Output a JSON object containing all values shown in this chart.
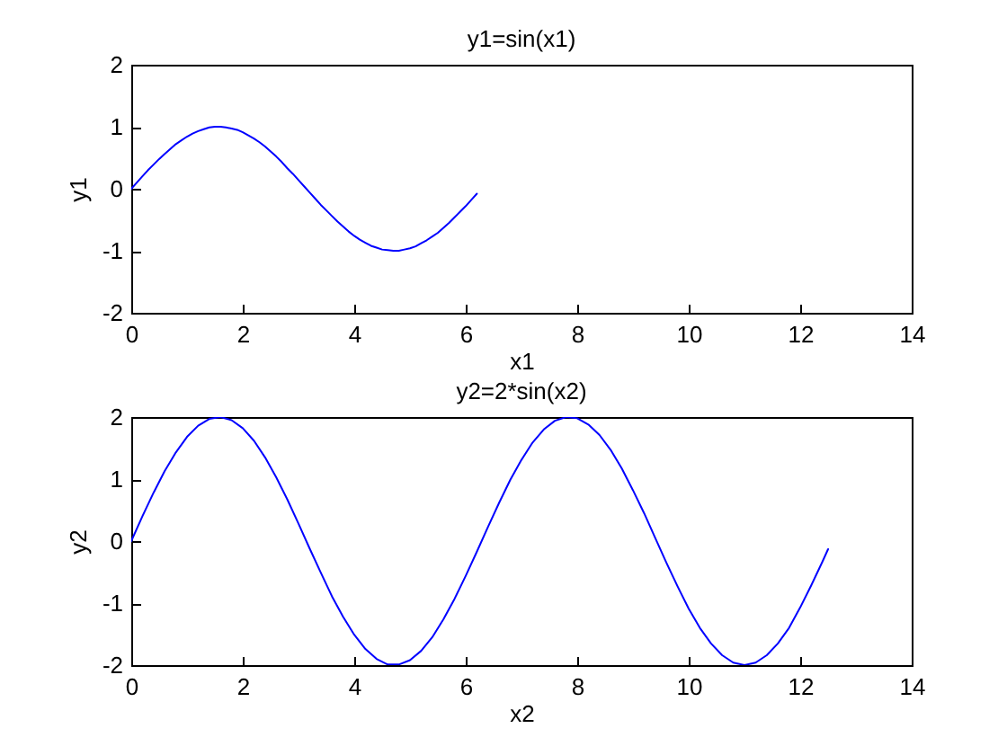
{
  "chart_data": [
    {
      "type": "line",
      "title": "y1=sin(x1)",
      "xlabel": "x1",
      "ylabel": "y1",
      "xlim": [
        0,
        14
      ],
      "xticks": [
        0,
        2,
        4,
        6,
        8,
        10,
        12,
        14
      ],
      "ylim": [
        -2,
        2
      ],
      "yticks": [
        -2,
        -1,
        0,
        1,
        2
      ],
      "series": [
        {
          "color": "#0000ff",
          "x": [
            0,
            0.1,
            0.2,
            0.3,
            0.4,
            0.5,
            0.6,
            0.7,
            0.8,
            0.9,
            1.0,
            1.1,
            1.2,
            1.3,
            1.4,
            1.5,
            1.6,
            1.7,
            1.8,
            1.9,
            2.0,
            2.1,
            2.2,
            2.3,
            2.4,
            2.5,
            2.6,
            2.7,
            2.8,
            2.9,
            3.0,
            3.1,
            3.2,
            3.3,
            3.4,
            3.5,
            3.6,
            3.7,
            3.8,
            3.9,
            4.0,
            4.1,
            4.2,
            4.3,
            4.4,
            4.5,
            4.6,
            4.7,
            4.8,
            4.9,
            5.0,
            5.1,
            5.2,
            5.3,
            5.4,
            5.5,
            5.6,
            5.7,
            5.8,
            5.9,
            6.0,
            6.1,
            6.2
          ],
          "values": [
            0,
            0.1,
            0.2,
            0.3,
            0.39,
            0.48,
            0.56,
            0.64,
            0.72,
            0.78,
            0.84,
            0.89,
            0.93,
            0.96,
            0.99,
            1.0,
            1.0,
            0.99,
            0.97,
            0.95,
            0.91,
            0.86,
            0.81,
            0.75,
            0.68,
            0.6,
            0.52,
            0.43,
            0.33,
            0.24,
            0.14,
            0.04,
            -0.06,
            -0.16,
            -0.26,
            -0.35,
            -0.44,
            -0.53,
            -0.61,
            -0.69,
            -0.76,
            -0.82,
            -0.87,
            -0.92,
            -0.95,
            -0.98,
            -0.99,
            -1.0,
            -1.0,
            -0.98,
            -0.96,
            -0.93,
            -0.88,
            -0.83,
            -0.77,
            -0.71,
            -0.63,
            -0.55,
            -0.46,
            -0.37,
            -0.28,
            -0.18,
            -0.08
          ]
        }
      ]
    },
    {
      "type": "line",
      "title": "y2=2*sin(x2)",
      "xlabel": "x2",
      "ylabel": "y2",
      "xlim": [
        0,
        14
      ],
      "xticks": [
        0,
        2,
        4,
        6,
        8,
        10,
        12,
        14
      ],
      "ylim": [
        -2,
        2
      ],
      "yticks": [
        -2,
        -1,
        0,
        1,
        2
      ],
      "series": [
        {
          "color": "#0000ff",
          "x": [
            0,
            0.2,
            0.4,
            0.6,
            0.8,
            1.0,
            1.2,
            1.4,
            1.6,
            1.8,
            2.0,
            2.2,
            2.4,
            2.6,
            2.8,
            3.0,
            3.2,
            3.4,
            3.6,
            3.8,
            4.0,
            4.2,
            4.4,
            4.6,
            4.8,
            5.0,
            5.2,
            5.4,
            5.6,
            5.8,
            6.0,
            6.2,
            6.4,
            6.6,
            6.8,
            7.0,
            7.2,
            7.4,
            7.6,
            7.8,
            8.0,
            8.2,
            8.4,
            8.6,
            8.8,
            9.0,
            9.2,
            9.4,
            9.6,
            9.8,
            10.0,
            10.2,
            10.4,
            10.6,
            10.8,
            11.0,
            11.2,
            11.4,
            11.6,
            11.8,
            12.0,
            12.2,
            12.4,
            12.5
          ],
          "values": [
            0,
            0.4,
            0.78,
            1.13,
            1.43,
            1.68,
            1.86,
            1.97,
            2.0,
            1.95,
            1.82,
            1.62,
            1.35,
            1.03,
            0.67,
            0.28,
            -0.12,
            -0.51,
            -0.89,
            -1.22,
            -1.51,
            -1.74,
            -1.9,
            -1.99,
            -1.99,
            -1.92,
            -1.77,
            -1.55,
            -1.26,
            -0.93,
            -0.56,
            -0.17,
            0.23,
            0.62,
            0.99,
            1.31,
            1.59,
            1.8,
            1.94,
            2.0,
            1.98,
            1.88,
            1.71,
            1.47,
            1.17,
            0.82,
            0.45,
            0.05,
            -0.35,
            -0.73,
            -1.09,
            -1.4,
            -1.65,
            -1.84,
            -1.96,
            -2.0,
            -1.96,
            -1.84,
            -1.65,
            -1.4,
            -1.07,
            -0.71,
            -0.33,
            -0.13
          ]
        }
      ]
    }
  ]
}
